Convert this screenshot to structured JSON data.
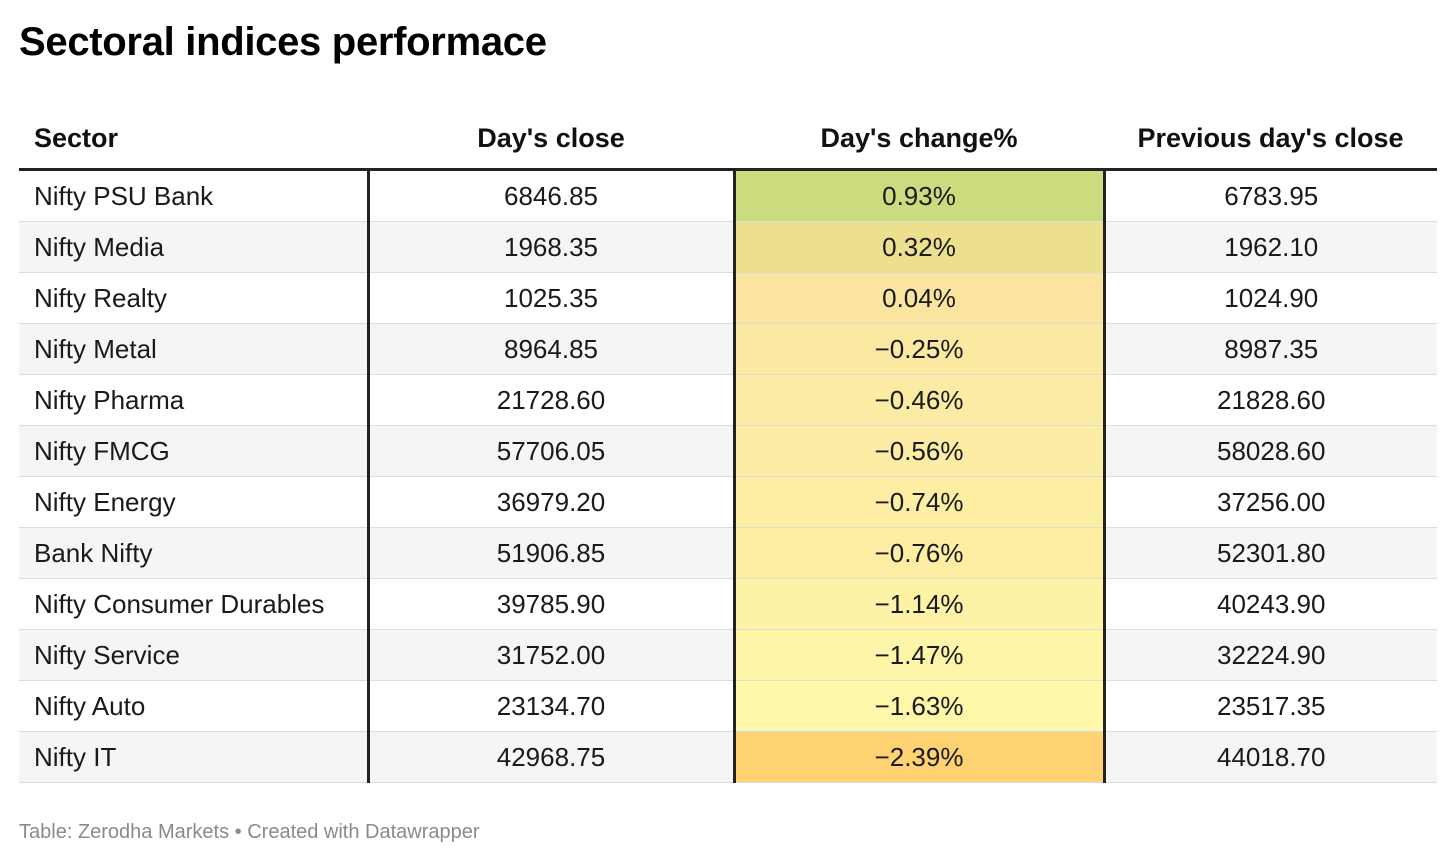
{
  "title": "Sectoral indices performace",
  "columns": [
    "Sector",
    "Day's close",
    "Day's change%",
    "Previous day's close"
  ],
  "footer": "Table: Zerodha Markets • Created with Datawrapper",
  "colors": {
    "heat_positive_high": "#cbdc7e",
    "heat_positive_mid": "#ece08f",
    "heat_neutral": "#fbe4a0",
    "heat_negative_light": "#fef7a9",
    "heat_negative_high": "#fed271"
  },
  "chart_data": {
    "type": "table",
    "title": "Sectoral indices performace",
    "columns": [
      "Sector",
      "Day's close",
      "Day's change%",
      "Previous day's close"
    ],
    "rows": [
      {
        "sector": "Nifty PSU Bank",
        "close": "6846.85",
        "change": "0.93%",
        "change_value": 0.93,
        "prev": "6783.95"
      },
      {
        "sector": "Nifty Media",
        "close": "1968.35",
        "change": "0.32%",
        "change_value": 0.32,
        "prev": "1962.10"
      },
      {
        "sector": "Nifty Realty",
        "close": "1025.35",
        "change": "0.04%",
        "change_value": 0.04,
        "prev": "1024.90"
      },
      {
        "sector": "Nifty Metal",
        "close": "8964.85",
        "change": "−0.25%",
        "change_value": -0.25,
        "prev": "8987.35"
      },
      {
        "sector": "Nifty Pharma",
        "close": "21728.60",
        "change": "−0.46%",
        "change_value": -0.46,
        "prev": "21828.60"
      },
      {
        "sector": "Nifty FMCG",
        "close": "57706.05",
        "change": "−0.56%",
        "change_value": -0.56,
        "prev": "58028.60"
      },
      {
        "sector": "Nifty Energy",
        "close": "36979.20",
        "change": "−0.74%",
        "change_value": -0.74,
        "prev": "37256.00"
      },
      {
        "sector": "Bank Nifty",
        "close": "51906.85",
        "change": "−0.76%",
        "change_value": -0.76,
        "prev": "52301.80"
      },
      {
        "sector": "Nifty Consumer Durables",
        "close": "39785.90",
        "change": "−1.14%",
        "change_value": -1.14,
        "prev": "40243.90"
      },
      {
        "sector": "Nifty Service",
        "close": "31752.00",
        "change": "−1.47%",
        "change_value": -1.47,
        "prev": "32224.90"
      },
      {
        "sector": "Nifty Auto",
        "close": "23134.70",
        "change": "−1.63%",
        "change_value": -1.63,
        "prev": "23517.35"
      },
      {
        "sector": "Nifty IT",
        "close": "42968.75",
        "change": "−2.39%",
        "change_value": -2.39,
        "prev": "44018.70"
      }
    ]
  }
}
